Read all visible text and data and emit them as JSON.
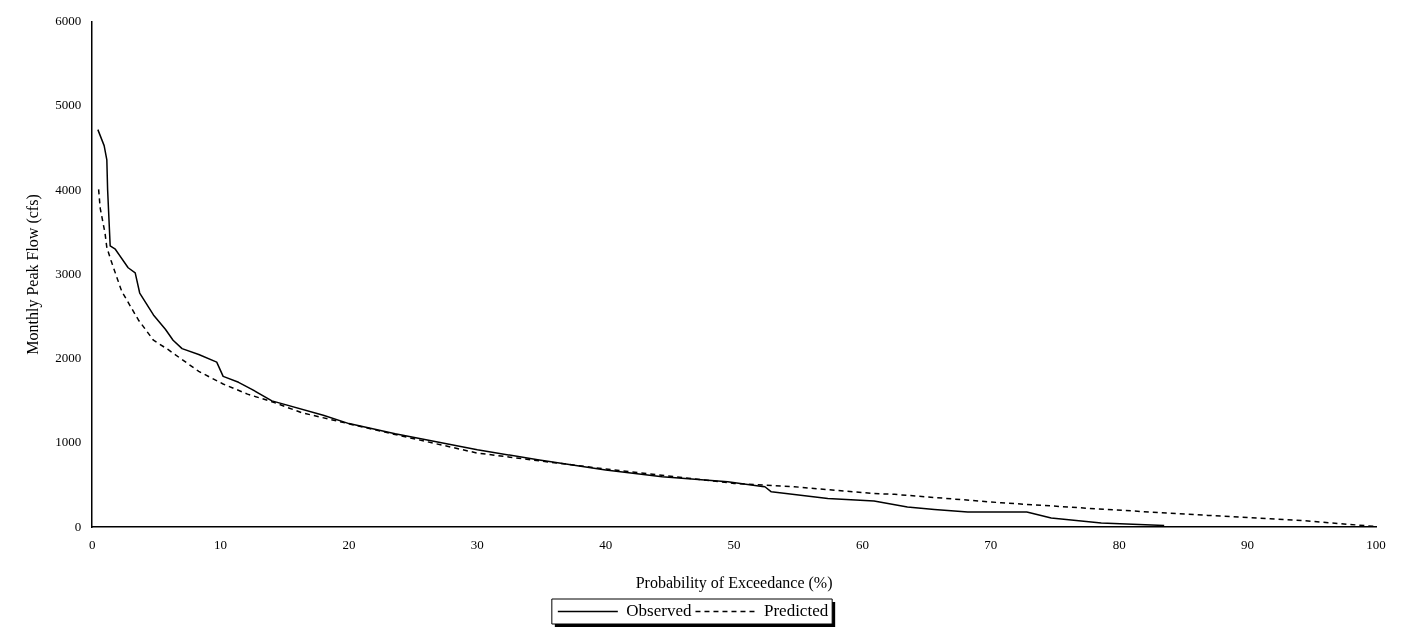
{
  "chart_data": {
    "type": "line",
    "xlabel": "Probability of Exceedance (%)",
    "ylabel": "Monthly Peak Flow (cfs)",
    "xlim": [
      0,
      100
    ],
    "xticks": [
      0,
      10,
      20,
      30,
      40,
      50,
      60,
      70,
      80,
      90,
      100
    ],
    "ylim": [
      0,
      6000
    ],
    "yticks": [
      0,
      1000,
      2000,
      3000,
      4000,
      5000,
      6000
    ],
    "grid": false,
    "legend": "bottom",
    "marker": "none",
    "series": [
      {
        "name": "Observed",
        "color": "#000000",
        "line_style": "solid",
        "x": [
          0.44,
          0.93,
          1.14,
          1.2,
          1.4,
          1.8,
          2.8,
          3.35,
          3.7,
          4.77,
          5.7,
          6.3,
          7.0,
          8.3,
          9.7,
          10.2,
          11.4,
          12.4,
          14.0,
          18,
          20,
          23.6,
          30,
          34.7,
          40,
          44.4,
          49.5,
          52.4,
          52.9,
          57.3,
          60.9,
          63.5,
          65.6,
          68.2,
          72.8,
          74.7,
          78.6,
          83.5
        ],
        "values": [
          4720,
          4530,
          4360,
          4010,
          3340,
          3300,
          3080,
          3020,
          2780,
          2520,
          2350,
          2220,
          2120,
          2050,
          1960,
          1790,
          1720,
          1640,
          1500,
          1330,
          1230,
          1110,
          920,
          800,
          680,
          600,
          540,
          480,
          420,
          340,
          310,
          240,
          210,
          180,
          180,
          110,
          50,
          20
        ]
      },
      {
        "name": "Predicted",
        "color": "#000000",
        "line_style": "dashed",
        "x": [
          0.5,
          0.62,
          1.0,
          1.14,
          1.5,
          2.3,
          3.6,
          4.77,
          5.9,
          8.3,
          10.2,
          12.1,
          14,
          16.3,
          20.2,
          24.2,
          30,
          40,
          50,
          54.7,
          60.9,
          62.5,
          70.8,
          79.1,
          86.9,
          94.2,
          99.8
        ],
        "values": [
          4010,
          3790,
          3490,
          3320,
          3150,
          2800,
          2460,
          2220,
          2110,
          1850,
          1700,
          1580,
          1490,
          1360,
          1220,
          1080,
          880,
          690,
          520,
          480,
          400,
          390,
          290,
          210,
          140,
          80,
          10
        ]
      }
    ]
  }
}
